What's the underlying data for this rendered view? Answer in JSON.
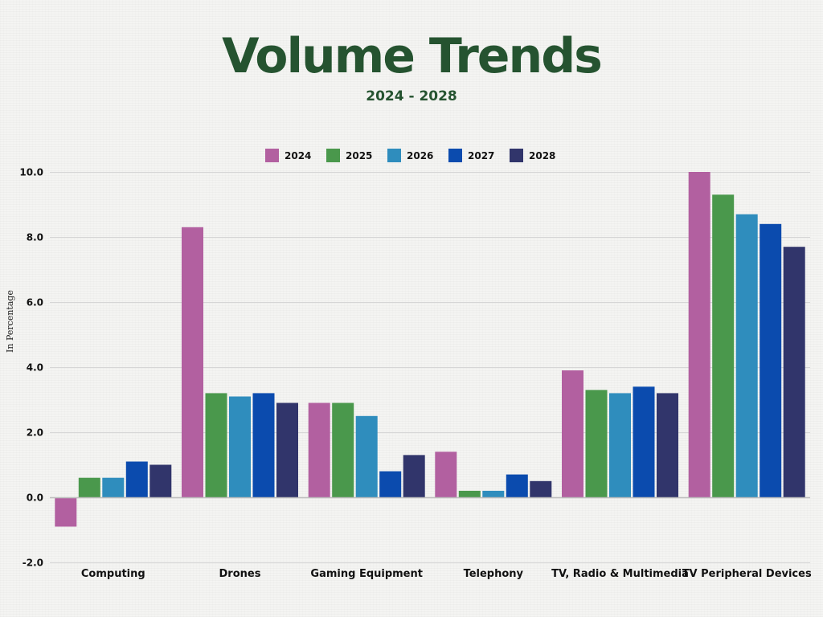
{
  "title": "Volume Trends",
  "subtitle": "2024 - 2028",
  "colors": {
    "title": "#255330",
    "grid": "#d6d6d6",
    "zero_line": "#bdbdbd"
  },
  "chart_data": {
    "type": "bar",
    "title": "Volume Trends",
    "subtitle": "2024 - 2028",
    "xlabel": "",
    "ylabel": "In Percentage",
    "ylim": [
      -2.0,
      10.0
    ],
    "yticks": [
      -2.0,
      0.0,
      2.0,
      4.0,
      6.0,
      8.0,
      10.0
    ],
    "tick_format": "one-decimal",
    "grid": true,
    "legend_position": "top-center",
    "categories": [
      "Computing",
      "Drones",
      "Gaming Equipment",
      "Telephony",
      "TV, Radio & Multimedia",
      "TV Peripheral Devices"
    ],
    "series": [
      {
        "name": "2024",
        "color": "#b260a0",
        "values": [
          -0.9,
          8.3,
          2.9,
          1.4,
          3.9,
          10.0
        ]
      },
      {
        "name": "2025",
        "color": "#4a984c",
        "values": [
          0.6,
          3.2,
          2.9,
          0.2,
          3.3,
          9.3
        ]
      },
      {
        "name": "2026",
        "color": "#2f8dbd",
        "values": [
          0.6,
          3.1,
          2.5,
          0.2,
          3.2,
          8.7
        ]
      },
      {
        "name": "2027",
        "color": "#0b4bae",
        "values": [
          1.1,
          3.2,
          0.8,
          0.7,
          3.4,
          8.4
        ]
      },
      {
        "name": "2028",
        "color": "#31356b",
        "values": [
          1.0,
          2.9,
          1.3,
          0.5,
          3.2,
          7.7
        ]
      }
    ]
  }
}
